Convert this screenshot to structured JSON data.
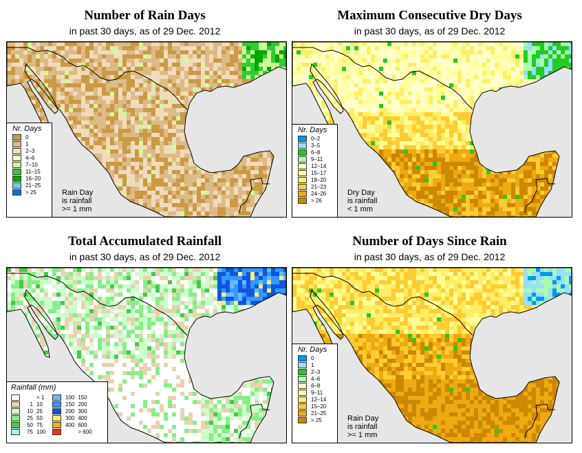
{
  "panels": {
    "rain_days": {
      "title": "Number of Rain Days",
      "subtitle": "in past 30 days, as of  29 Dec. 2012",
      "legend_title": "Nr. Days",
      "legend": [
        {
          "label": "0",
          "color": "#cc9944"
        },
        {
          "label": "1",
          "color": "#ddbb88"
        },
        {
          "label": "2–3",
          "color": "#f0dcbc"
        },
        {
          "label": "4–6",
          "color": "#ffffcc"
        },
        {
          "label": "7–10",
          "color": "#ccff99"
        },
        {
          "label": "11–15",
          "color": "#33cc33"
        },
        {
          "label": "16–20",
          "color": "#00aa00"
        },
        {
          "label": "21–25",
          "color": "#66ccff"
        },
        {
          "label": "> 25",
          "color": "#0077cc"
        }
      ],
      "note": [
        "Rain Day",
        "is rainfall",
        ">= 1 mm"
      ]
    },
    "dry_days": {
      "title": "Maximum Consecutive Dry Days",
      "subtitle": "in past 30 days, as of  29 Dec. 2012",
      "legend_title": "Nr. Days",
      "legend": [
        {
          "label": "0–2",
          "color": "#0099ee"
        },
        {
          "label": "3–5",
          "color": "#99ddff"
        },
        {
          "label": "6–8",
          "color": "#22cc22"
        },
        {
          "label": "9–11",
          "color": "#aaffaa"
        },
        {
          "label": "12–14",
          "color": "#ffffcc"
        },
        {
          "label": "15–17",
          "color": "#ffff99"
        },
        {
          "label": "18–20",
          "color": "#ffee66"
        },
        {
          "label": "21–23",
          "color": "#ffcc33"
        },
        {
          "label": "24–26",
          "color": "#eeaa11"
        },
        {
          "label": "> 26",
          "color": "#cc8800"
        }
      ],
      "note": [
        "Dry Day",
        "is rainfall",
        "< 1 mm"
      ]
    },
    "rainfall": {
      "title": "Total Accumulated Rainfall",
      "subtitle": "in past 30 days, as of  29 Dec. 2012",
      "legend_title": "Rainfall (mm)",
      "legend_left": [
        {
          "lo": "",
          "hi": "< 1",
          "color": "#ffffff"
        },
        {
          "lo": "1",
          "hi": "10",
          "color": "#e8d3b0"
        },
        {
          "lo": "10",
          "hi": "25",
          "color": "#ccffcc"
        },
        {
          "lo": "25",
          "hi": "50",
          "color": "#88ee88"
        },
        {
          "lo": "50",
          "hi": "75",
          "color": "#44cc44"
        },
        {
          "lo": "75",
          "hi": "100",
          "color": "#aaeeff"
        }
      ],
      "legend_right": [
        {
          "lo": "100",
          "hi": "150",
          "color": "#66bbff"
        },
        {
          "lo": "150",
          "hi": "200",
          "color": "#3399ff"
        },
        {
          "lo": "200",
          "hi": "300",
          "color": "#1155dd"
        },
        {
          "lo": "300",
          "hi": "400",
          "color": "#ffee77"
        },
        {
          "lo": "400",
          "hi": "600",
          "color": "#ffaa22"
        },
        {
          "lo": "",
          "hi": "> 600",
          "color": "#ff3300"
        }
      ]
    },
    "since_rain": {
      "title": "Number of Days Since Rain",
      "subtitle": "in past 30 days, as of  29 Dec. 2012",
      "legend_title": "Nr. Days",
      "legend": [
        {
          "label": "0",
          "color": "#0099ee"
        },
        {
          "label": "1",
          "color": "#99ddff"
        },
        {
          "label": "2–3",
          "color": "#22cc22"
        },
        {
          "label": "4–6",
          "color": "#aaffaa"
        },
        {
          "label": "6–8",
          "color": "#ffffcc"
        },
        {
          "label": "9–11",
          "color": "#ffff99"
        },
        {
          "label": "12–14",
          "color": "#ffee66"
        },
        {
          "label": "15–20",
          "color": "#ffcc33"
        },
        {
          "label": "21–25",
          "color": "#eeaa11"
        },
        {
          "label": "> 25",
          "color": "#cc8800"
        }
      ],
      "note": [
        "Rain Day",
        "is rainfall",
        ">= 1 mm"
      ]
    }
  },
  "colors": {
    "ocean": "#e6e6e6",
    "border": "#000000"
  }
}
